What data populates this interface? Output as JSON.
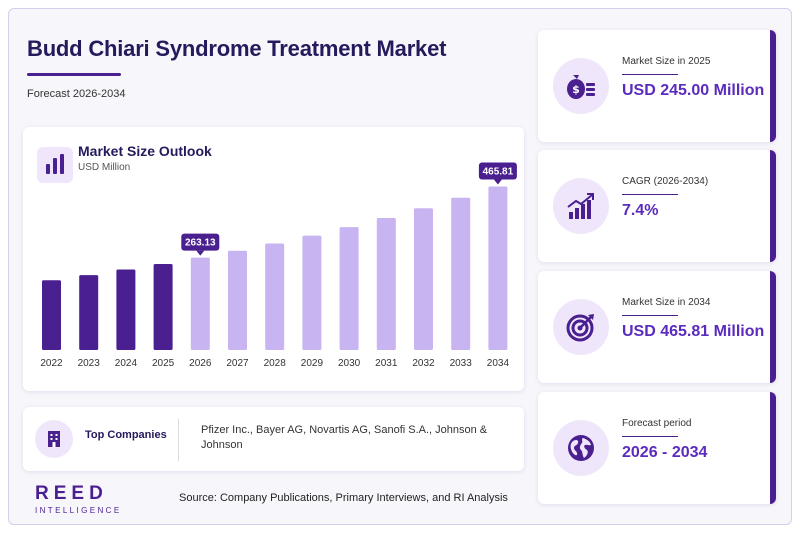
{
  "header": {
    "title": "Budd Chiari Syndrome Treatment Market",
    "subtitle": "Forecast 2026-2034"
  },
  "chart_data": {
    "type": "bar",
    "title": "Market Size Outlook",
    "ylabel": "USD Million",
    "categories": [
      "2022",
      "2023",
      "2024",
      "2025",
      "2026",
      "2027",
      "2028",
      "2029",
      "2030",
      "2031",
      "2032",
      "2033",
      "2034"
    ],
    "values": [
      198.7,
      213.4,
      229.2,
      245.0,
      263.13,
      282.6,
      303.5,
      325.9,
      350.0,
      375.9,
      403.7,
      433.6,
      465.81
    ],
    "labeled": {
      "2026": "263.13",
      "2034": "465.81"
    },
    "historical_color": "#4a1f8f",
    "forecast_color": "#c8b4f0",
    "ylim": [
      0,
      480
    ],
    "grid": false,
    "legend": "none"
  },
  "companies": {
    "label": "Top Companies",
    "list": "Pfizer Inc., Bayer AG, Novartis AG, Sanofi S.A., Johnson & Johnson"
  },
  "stats": [
    {
      "label": "Market Size in 2025",
      "value": "USD 245.00 Million",
      "icon": "money-bag-icon"
    },
    {
      "label": "CAGR (2026-2034)",
      "value": "7.4%",
      "icon": "growth-chart-icon"
    },
    {
      "label": "Market Size in 2034",
      "value": "USD 465.81 Million",
      "icon": "target-icon"
    },
    {
      "label": "Forecast period",
      "value": "2026 - 2034",
      "icon": "globe-icon"
    }
  ],
  "footer": {
    "logo_main": "REED",
    "logo_sub": "INTELLIGENCE",
    "source": "Source: Company Publications, Primary Interviews, and RI Analysis"
  },
  "colors": {
    "accent": "#4a1f8f",
    "value": "#5b2bbd",
    "soft": "#efe6fb"
  }
}
